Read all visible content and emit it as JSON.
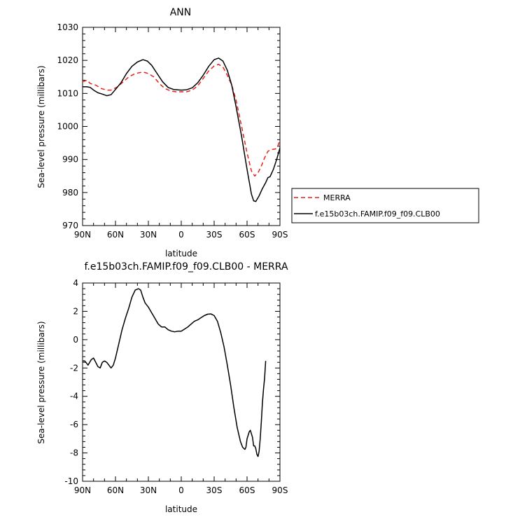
{
  "chart_data": [
    {
      "type": "line",
      "title": "ANN",
      "xlabel": "latitude",
      "ylabel": "Sea-level pressure (millibars)",
      "xlim": [
        90,
        -90
      ],
      "ylim": [
        970,
        1030
      ],
      "x_ticks": [
        90,
        60,
        30,
        0,
        -30,
        -60,
        -90
      ],
      "x_tick_labels": [
        "90N",
        "60N",
        "30N",
        "0",
        "30S",
        "60S",
        "90S"
      ],
      "y_ticks": [
        970,
        980,
        990,
        1000,
        1010,
        1020,
        1030
      ],
      "y_tick_labels": [
        "970",
        "980",
        "990",
        "1000",
        "1010",
        "1020",
        "1030"
      ],
      "grid": false,
      "legend_position": "right",
      "series": [
        {
          "name": "MERRA",
          "color": "#e8211c",
          "dash": "dashed",
          "points": [
            [
              90,
              1013.5
            ],
            [
              86,
              1014
            ],
            [
              83,
              1013
            ],
            [
              78,
              1012.5
            ],
            [
              73,
              1011.5
            ],
            [
              68,
              1011
            ],
            [
              64,
              1011
            ],
            [
              58,
              1012
            ],
            [
              53,
              1013.5
            ],
            [
              48,
              1015
            ],
            [
              42,
              1016
            ],
            [
              35,
              1016.5
            ],
            [
              30,
              1016
            ],
            [
              25,
              1015
            ],
            [
              20,
              1013
            ],
            [
              15,
              1011.5
            ],
            [
              10,
              1010.8
            ],
            [
              5,
              1010.5
            ],
            [
              0,
              1010.5
            ],
            [
              -5,
              1010.5
            ],
            [
              -10,
              1011
            ],
            [
              -15,
              1012.3
            ],
            [
              -20,
              1014.5
            ],
            [
              -25,
              1016.8
            ],
            [
              -30,
              1018.3
            ],
            [
              -34,
              1018.8
            ],
            [
              -38,
              1018
            ],
            [
              -42,
              1015.5
            ],
            [
              -46,
              1012.5
            ],
            [
              -50,
              1008
            ],
            [
              -55,
              1000
            ],
            [
              -60,
              992
            ],
            [
              -64,
              986.5
            ],
            [
              -67,
              985
            ],
            [
              -70,
              986
            ],
            [
              -73,
              988
            ],
            [
              -76,
              990.5
            ],
            [
              -79,
              992.5
            ],
            [
              -82,
              993
            ],
            [
              -86,
              993.2
            ],
            [
              -88,
              994
            ],
            [
              -90,
              996
            ]
          ]
        },
        {
          "name": "f.e15b03ch.FAMIP.f09_f09.CLB00",
          "color": "#000000",
          "dash": "solid",
          "points": [
            [
              90,
              1012
            ],
            [
              86,
              1012
            ],
            [
              83,
              1011.8
            ],
            [
              80,
              1011
            ],
            [
              76,
              1010.2
            ],
            [
              72,
              1009.8
            ],
            [
              68,
              1009.3
            ],
            [
              64,
              1009.6
            ],
            [
              60,
              1011.2
            ],
            [
              55,
              1013.2
            ],
            [
              50,
              1016
            ],
            [
              45,
              1018.2
            ],
            [
              40,
              1019.5
            ],
            [
              35,
              1020.2
            ],
            [
              31,
              1019.8
            ],
            [
              27,
              1018.5
            ],
            [
              22,
              1016
            ],
            [
              17,
              1013.5
            ],
            [
              12,
              1011.8
            ],
            [
              7,
              1011.2
            ],
            [
              0,
              1011
            ],
            [
              -5,
              1011.1
            ],
            [
              -10,
              1011.7
            ],
            [
              -15,
              1013.2
            ],
            [
              -20,
              1015.5
            ],
            [
              -25,
              1018.2
            ],
            [
              -30,
              1020.2
            ],
            [
              -34,
              1020.7
            ],
            [
              -38,
              1019.8
            ],
            [
              -42,
              1017
            ],
            [
              -46,
              1012.5
            ],
            [
              -50,
              1006
            ],
            [
              -55,
              997
            ],
            [
              -60,
              987
            ],
            [
              -64,
              979.5
            ],
            [
              -66,
              977.5
            ],
            [
              -68,
              977.3
            ],
            [
              -71,
              979
            ],
            [
              -74,
              981.2
            ],
            [
              -77,
              983
            ],
            [
              -79,
              984.5
            ],
            [
              -81,
              984.8
            ],
            [
              -84,
              987
            ],
            [
              -87,
              990
            ],
            [
              -90,
              993.5
            ]
          ]
        }
      ]
    },
    {
      "type": "line",
      "title": "f.e15b03ch.FAMIP.f09_f09.CLB00 - MERRA",
      "xlabel": "latitude",
      "ylabel": "Sea-level pressure (millibars)",
      "xlim": [
        90,
        -90
      ],
      "ylim": [
        -10,
        4
      ],
      "x_ticks": [
        90,
        60,
        30,
        0,
        -30,
        -60,
        -90
      ],
      "x_tick_labels": [
        "90N",
        "60N",
        "30N",
        "0",
        "30S",
        "60S",
        "90S"
      ],
      "y_ticks": [
        -10,
        -8,
        -6,
        -4,
        -2,
        0,
        2,
        4
      ],
      "y_tick_labels": [
        "-10",
        "-8",
        "-6",
        "-4",
        "-2",
        "0",
        "2",
        "4"
      ],
      "grid": false,
      "series": [
        {
          "color": "#000000",
          "dash": "solid",
          "points": [
            [
              90,
              -1.5
            ],
            [
              88,
              -1.5
            ],
            [
              85,
              -1.8
            ],
            [
              82,
              -1.4
            ],
            [
              80,
              -1.3
            ],
            [
              78,
              -1.6
            ],
            [
              76,
              -1.9
            ],
            [
              74,
              -2
            ],
            [
              72,
              -1.6
            ],
            [
              70,
              -1.5
            ],
            [
              68,
              -1.6
            ],
            [
              66,
              -1.8
            ],
            [
              64,
              -2
            ],
            [
              62,
              -1.8
            ],
            [
              60,
              -1.3
            ],
            [
              57,
              -0.3
            ],
            [
              54,
              0.7
            ],
            [
              51,
              1.5
            ],
            [
              48,
              2.2
            ],
            [
              45,
              3
            ],
            [
              42,
              3.5
            ],
            [
              39,
              3.6
            ],
            [
              37,
              3.5
            ],
            [
              35,
              3
            ],
            [
              33,
              2.6
            ],
            [
              30,
              2.3
            ],
            [
              27,
              1.9
            ],
            [
              24,
              1.5
            ],
            [
              21,
              1.1
            ],
            [
              18,
              0.9
            ],
            [
              15,
              0.9
            ],
            [
              12,
              0.7
            ],
            [
              9,
              0.6
            ],
            [
              6,
              0.55
            ],
            [
              3,
              0.6
            ],
            [
              0,
              0.6
            ],
            [
              -3,
              0.75
            ],
            [
              -6,
              0.9
            ],
            [
              -9,
              1.1
            ],
            [
              -12,
              1.3
            ],
            [
              -15,
              1.4
            ],
            [
              -18,
              1.55
            ],
            [
              -21,
              1.7
            ],
            [
              -24,
              1.8
            ],
            [
              -27,
              1.82
            ],
            [
              -30,
              1.7
            ],
            [
              -33,
              1.3
            ],
            [
              -36,
              0.5
            ],
            [
              -39,
              -0.5
            ],
            [
              -42,
              -1.8
            ],
            [
              -45,
              -3.2
            ],
            [
              -48,
              -4.8
            ],
            [
              -51,
              -6.2
            ],
            [
              -54,
              -7.2
            ],
            [
              -56,
              -7.6
            ],
            [
              -58,
              -7.75
            ],
            [
              -59,
              -7.6
            ],
            [
              -60,
              -7.0
            ],
            [
              -62,
              -6.5
            ],
            [
              -63,
              -6.4
            ],
            [
              -65,
              -6.9
            ],
            [
              -66,
              -7.5
            ],
            [
              -67,
              -7.5
            ],
            [
              -68,
              -7.7
            ],
            [
              -69,
              -8.1
            ],
            [
              -70,
              -8.25
            ],
            [
              -71,
              -7.9
            ],
            [
              -72,
              -7.0
            ],
            [
              -73,
              -5.8
            ],
            [
              -74,
              -4.5
            ],
            [
              -75,
              -3.5
            ],
            [
              -76,
              -2.7
            ],
            [
              -77,
              -1.5
            ]
          ]
        }
      ]
    }
  ],
  "legend": {
    "items": [
      {
        "label": "MERRA"
      },
      {
        "label": "f.e15b03ch.FAMIP.f09_f09.CLB00"
      }
    ]
  }
}
